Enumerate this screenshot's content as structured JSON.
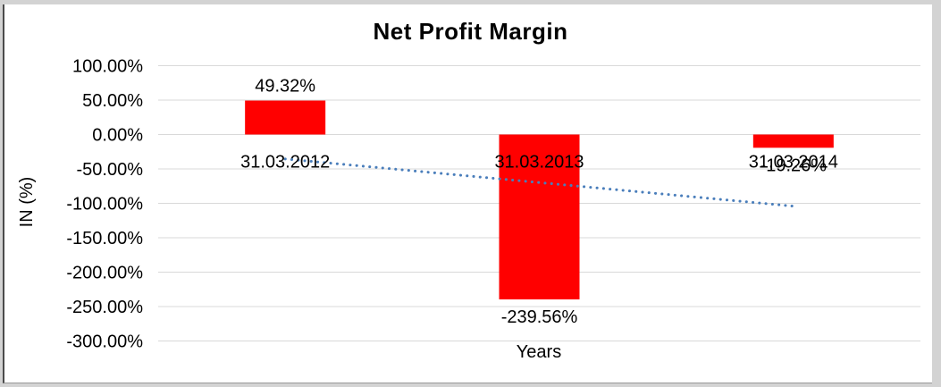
{
  "chart_data": {
    "type": "bar",
    "title": "Net Profit Margin",
    "xlabel": "Years",
    "ylabel": "IN (%)",
    "categories": [
      "31.03.2012",
      "31.03.2013",
      "31.03.2014"
    ],
    "values": [
      49.32,
      -239.56,
      -19.26
    ],
    "data_labels": [
      "49.32%",
      "-239.56%",
      "-19.26%"
    ],
    "y_ticks": [
      "100.00%",
      "50.00%",
      "0.00%",
      "-50.00%",
      "-100.00%",
      "-150.00%",
      "-200.00%",
      "-250.00%",
      "-300.00%"
    ],
    "ylim": [
      -300,
      100
    ],
    "tick_step": 50,
    "grid": true,
    "legend": false,
    "bar_color": "#ff0000",
    "gridline_color": "#d9d9d9",
    "text_color": "#000000",
    "trendline": {
      "type": "linear",
      "style": "dotted",
      "color": "#4a7ebb",
      "start_value": -35.5,
      "end_value": -104.1
    }
  }
}
